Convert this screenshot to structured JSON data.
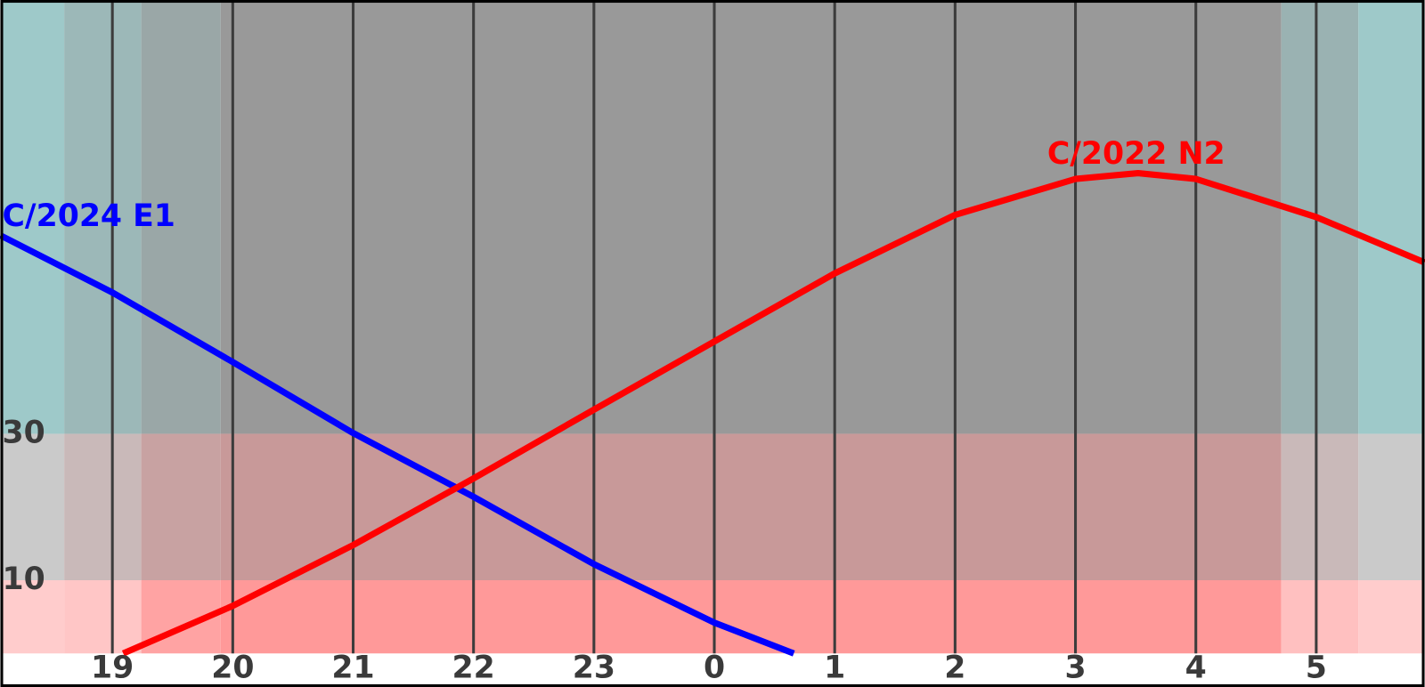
{
  "chart_data": {
    "type": "line",
    "xlim": [
      18.07,
      29.9
    ],
    "ylim": [
      0,
      89
    ],
    "xticks": [
      19,
      20,
      21,
      22,
      23,
      {
        "value": 24,
        "label": "0"
      },
      {
        "value": 25,
        "label": "1"
      },
      {
        "value": 26,
        "label": "2"
      },
      {
        "value": 27,
        "label": "3"
      },
      {
        "value": 28,
        "label": "4"
      },
      {
        "value": 29,
        "label": "5"
      }
    ],
    "yticks": [
      10,
      30
    ],
    "grid": true,
    "twilight_edges": [
      18.6,
      19.24,
      19.9,
      28.71,
      29.35
    ],
    "band_colors": [
      [
        "#ffcccc",
        "#cacaca",
        "#9ec9c9"
      ],
      [
        "#ffc6c6",
        "#c9b9b9",
        "#9cb8b8"
      ],
      [
        "#ffa3a3",
        "#c8a2a2",
        "#9aa7a7"
      ],
      [
        "#ff9999",
        "#c89999",
        "#999999"
      ],
      [
        "#ffc0c0",
        "#c9b9b9",
        "#9ab2b2"
      ],
      [
        "#ffcccc",
        "#cacaca",
        "#9ec9c9"
      ]
    ],
    "series": [
      {
        "name": "C/2024 E1",
        "color": "#0000ff",
        "x": [
          18.07,
          19,
          20,
          21,
          22,
          23,
          24,
          24.66
        ],
        "values": [
          57.1,
          49.3,
          39.8,
          30.1,
          21.4,
          12.2,
          4.2,
          0
        ]
      },
      {
        "name": "C/2022 N2",
        "color": "#ff0000",
        "x": [
          19.09,
          20,
          21,
          22,
          23,
          24,
          25,
          26,
          27,
          27.52,
          28,
          29,
          29.9
        ],
        "values": [
          0,
          6.5,
          14.8,
          23.9,
          33.3,
          42.6,
          51.9,
          59.9,
          64.8,
          65.6,
          64.8,
          59.6,
          53.4
        ]
      }
    ]
  }
}
